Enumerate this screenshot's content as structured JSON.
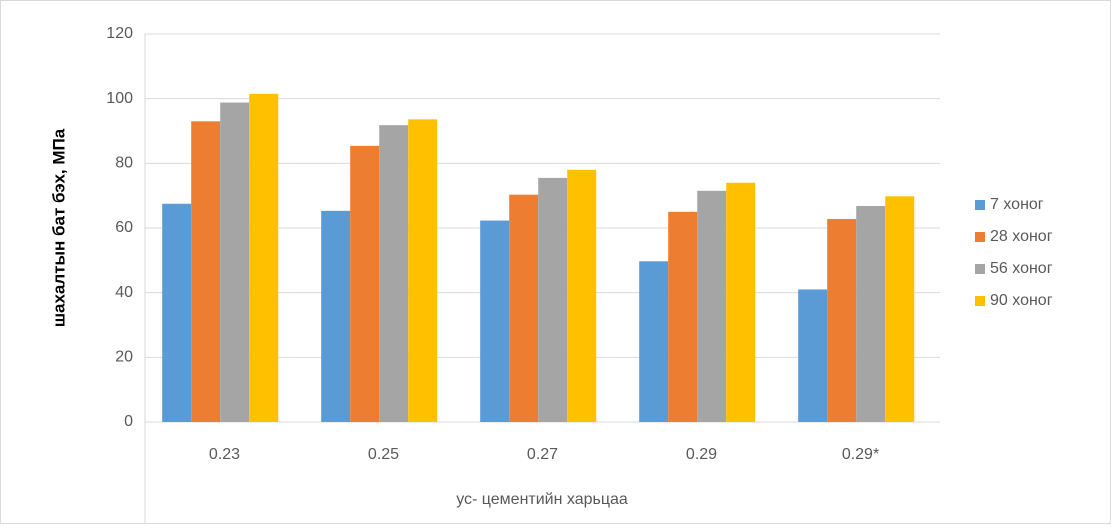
{
  "chart_data": {
    "type": "bar",
    "y_label": "шахалтын бат бэх, МПа",
    "x_label": "ус- цементийн харьцаа",
    "categories": [
      "0.23",
      "0.25",
      "0.27",
      "0.29",
      "0.29*"
    ],
    "series": [
      {
        "name": "7 хоног",
        "color": "#5b9bd5",
        "values": [
          67.5,
          65.3,
          62.3,
          49.7,
          41
        ]
      },
      {
        "name": "28 хоног",
        "color": "#ed7d31",
        "values": [
          93,
          85.4,
          70.3,
          65,
          62.8
        ]
      },
      {
        "name": "56 хоног",
        "color": "#a5a5a5",
        "values": [
          98.8,
          91.8,
          75.5,
          71.5,
          66.8
        ]
      },
      {
        "name": "90 хоног",
        "color": "#ffc000",
        "values": [
          101.5,
          93.6,
          78,
          74,
          69.8
        ]
      }
    ],
    "ylim": [
      0,
      120
    ],
    "yticks": [
      0,
      20,
      40,
      60,
      80,
      100,
      120
    ],
    "grid": true,
    "legend": "right"
  }
}
